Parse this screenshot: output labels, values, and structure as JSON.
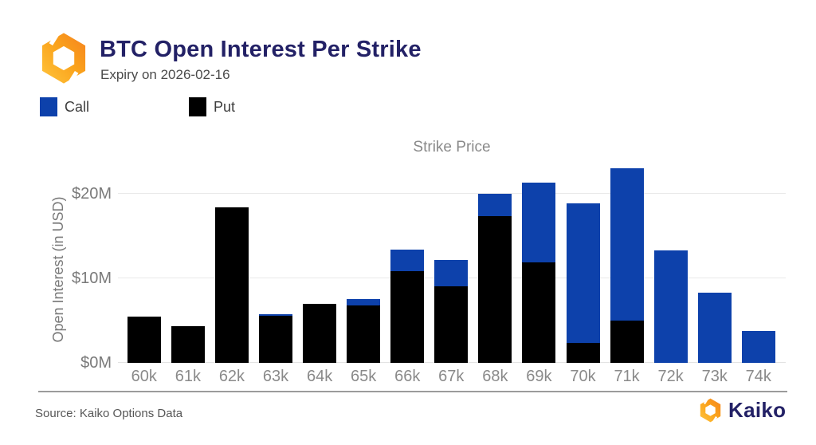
{
  "header": {
    "title": "BTC Open Interest Per Strike",
    "subtitle": "Expiry on 2026-02-16"
  },
  "legend": [
    {
      "label": "Call",
      "color": "#0D41AB"
    },
    {
      "label": "Put",
      "color": "#000000"
    }
  ],
  "chart_data": {
    "type": "bar",
    "stacked": true,
    "xlabel": "Strike Price",
    "ylabel": "Open Interest (in USD)",
    "categories": [
      "60k",
      "61k",
      "62k",
      "63k",
      "64k",
      "65k",
      "66k",
      "67k",
      "68k",
      "69k",
      "70k",
      "71k",
      "72k",
      "73k",
      "74k"
    ],
    "series": [
      {
        "name": "Put",
        "color": "#000000",
        "values": [
          5.5,
          4.3,
          18.4,
          5.6,
          7.0,
          6.8,
          10.9,
          9.1,
          17.4,
          11.9,
          2.4,
          5.0,
          0,
          0,
          0
        ]
      },
      {
        "name": "Call",
        "color": "#0D41AB",
        "values": [
          0,
          0,
          0,
          0.2,
          0,
          0.8,
          2.5,
          3.1,
          2.6,
          9.4,
          16.5,
          18.0,
          13.3,
          8.3,
          3.8
        ]
      }
    ],
    "y_ticks": [
      {
        "value": 0,
        "label": "$0M"
      },
      {
        "value": 10,
        "label": "$10M"
      },
      {
        "value": 20,
        "label": "$20M"
      }
    ],
    "ylim": [
      0,
      23.6
    ],
    "grid": true,
    "legend_position": "top-left"
  },
  "footer": {
    "source": "Source: Kaiko Options Data",
    "brand": "Kaiko"
  },
  "colors": {
    "call_blue": "#0D41AB",
    "put_black": "#000000",
    "brand_navy": "#232166",
    "grid_gray": "#e9e9e9"
  }
}
